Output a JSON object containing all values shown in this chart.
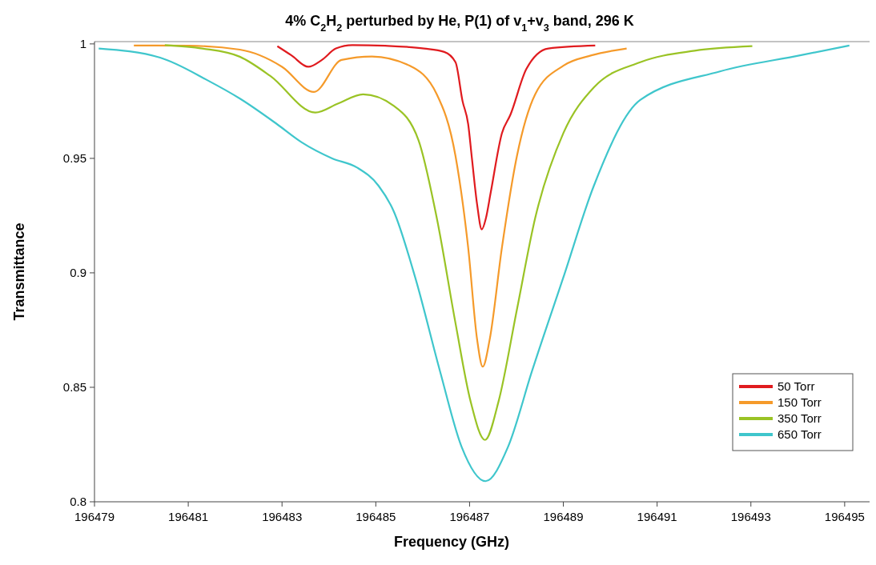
{
  "chart_data": {
    "type": "line",
    "title": "4% C$_{2}$H$_{2}$ perturbed by He, P(1) of v$_{1}$+v$_{3}$ band, 296 K",
    "xlabel": "Frequency (GHz)",
    "ylabel": "Transmittance",
    "xlim": [
      196479,
      196495.6
    ],
    "xticks": [
      196479,
      196481,
      196483,
      196485,
      196487,
      196489,
      196491,
      196493,
      196495
    ],
    "ylim": [
      0.8,
      1.001
    ],
    "yticks": [
      0.8,
      0.85,
      0.9,
      0.95,
      1
    ],
    "grid": false,
    "legend": "bottom right",
    "marker": "none",
    "line_style": "solid",
    "series": [
      {
        "name": "50 Torr",
        "color": "#e01b1f",
        "x": [
          196482.9,
          196483.2,
          196483.56,
          196483.85,
          196484.15,
          196484.5,
          196485.2,
          196486.03,
          196486.46,
          196486.7,
          196486.85,
          196486.97,
          196487.05,
          196487.16,
          196487.26,
          196487.35,
          196487.45,
          196487.69,
          196487.87,
          196488.21,
          196488.68,
          196489.68
        ],
        "values": [
          0.999,
          0.995,
          0.99,
          0.993,
          0.998,
          0.9995,
          0.9992,
          0.998,
          0.9965,
          0.992,
          0.975,
          0.965,
          0.95,
          0.93,
          0.919,
          0.924,
          0.935,
          0.961,
          0.969,
          0.989,
          0.998,
          0.9993
        ]
      },
      {
        "name": "150 Torr",
        "color": "#f59a2a",
        "x": [
          196479.84,
          196481,
          196482.1,
          196483,
          196483.68,
          196484.27,
          196484.92,
          196485.72,
          196486.3,
          196486.7,
          196486.97,
          196487.16,
          196487.28,
          196487.43,
          196487.69,
          196488.01,
          196488.4,
          196489,
          196489.6,
          196490.35
        ],
        "values": [
          0.9993,
          0.9992,
          0.9975,
          0.99,
          0.979,
          0.993,
          0.9945,
          0.9905,
          0.978,
          0.951,
          0.911,
          0.871,
          0.859,
          0.871,
          0.911,
          0.951,
          0.978,
          0.9905,
          0.995,
          0.998
        ]
      },
      {
        "name": "350 Torr",
        "color": "#9ac325",
        "x": [
          196480.5,
          196481.3,
          196482.1,
          196482.75,
          196483.71,
          196484.2,
          196484.73,
          196485.38,
          196485.91,
          196486.3,
          196486.7,
          196487.02,
          196487.33,
          196487.62,
          196488.01,
          196488.4,
          196489,
          196489.65,
          196490.64,
          196491.8,
          196493.03
        ],
        "values": [
          0.9995,
          0.998,
          0.9944,
          0.986,
          0.97,
          0.974,
          0.978,
          0.973,
          0.958,
          0.924,
          0.878,
          0.844,
          0.827,
          0.844,
          0.884,
          0.924,
          0.961,
          0.981,
          0.992,
          0.997,
          0.999
        ]
      },
      {
        "name": "650 Torr",
        "color": "#3fc6cc",
        "x": [
          196479.09,
          196480.4,
          196481.42,
          196482.11,
          196482.89,
          196483.42,
          196484.07,
          196484.6,
          196485.06,
          196485.38,
          196485.84,
          196486.37,
          196486.83,
          196487.34,
          196487.82,
          196488.33,
          196489,
          196489.65,
          196490.64,
          196492.34,
          196494.05,
          196495.1
        ],
        "values": [
          0.998,
          0.994,
          0.984,
          0.976,
          0.965,
          0.957,
          0.95,
          0.946,
          0.938,
          0.927,
          0.898,
          0.857,
          0.824,
          0.809,
          0.824,
          0.857,
          0.898,
          0.938,
          0.9755,
          0.988,
          0.995,
          0.9993
        ]
      }
    ]
  }
}
